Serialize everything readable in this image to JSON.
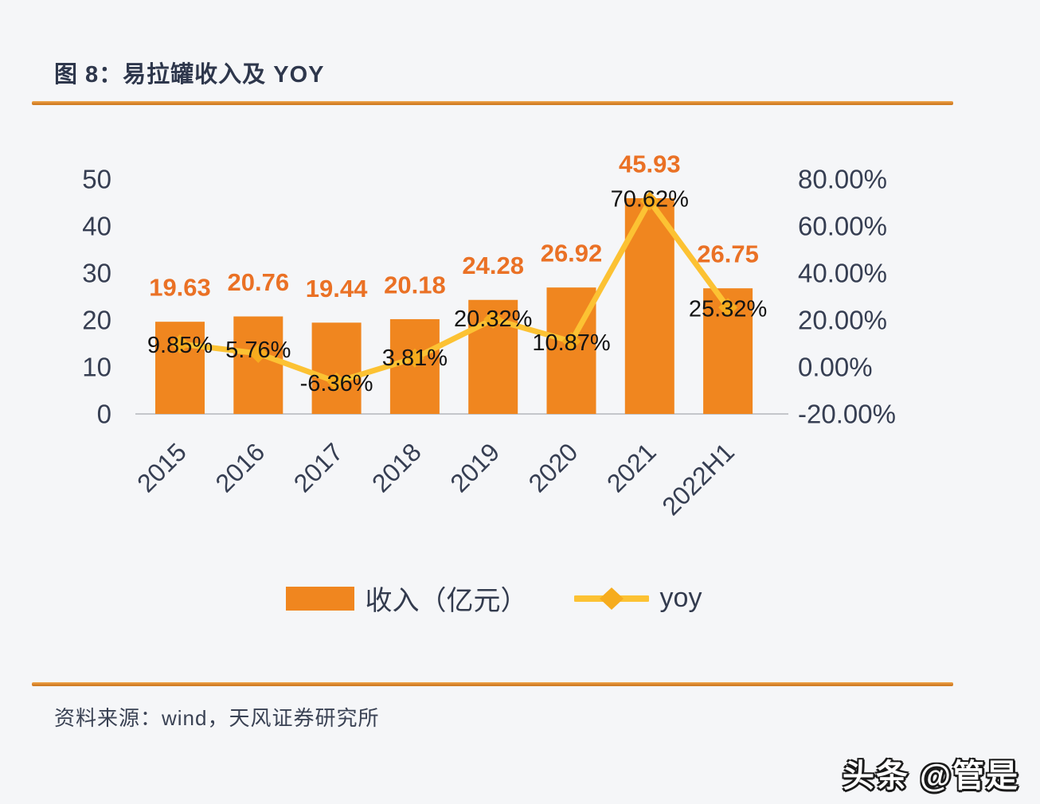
{
  "figure": {
    "title": "图 8：易拉罐收入及 YOY",
    "source": "资料来源：wind，天风证券研究所"
  },
  "watermark": "头条 @管是",
  "legend": {
    "bar_label": "收入（亿元）",
    "line_label": "yoy"
  },
  "colors": {
    "bar": "#f0861f",
    "bar_label": "#ea7125",
    "line": "#fcc233",
    "marker": "#f6ac1e",
    "tick_text": "#363e52",
    "line_label_text": "#141414",
    "axis_line": "#c4c6ca",
    "rule_orange": "#d9832a",
    "background": "#f5f6f8"
  },
  "chart_data": {
    "type": "bar",
    "subtype": "combo-bar-line",
    "title": "图 8：易拉罐收入及 YOY",
    "categories": [
      "2015",
      "2016",
      "2017",
      "2018",
      "2019",
      "2020",
      "2021",
      "2022H1"
    ],
    "series": [
      {
        "name": "收入（亿元）",
        "type": "bar",
        "axis": "left",
        "values": [
          19.63,
          20.76,
          19.44,
          20.18,
          24.28,
          26.92,
          45.93,
          26.75
        ],
        "labels": [
          "19.63",
          "20.76",
          "19.44",
          "20.18",
          "24.28",
          "26.92",
          "45.93",
          "26.75"
        ]
      },
      {
        "name": "yoy",
        "type": "line",
        "axis": "right",
        "values": [
          9.85,
          5.76,
          -6.36,
          3.81,
          20.32,
          10.87,
          70.62,
          25.32
        ],
        "labels": [
          "9.85%",
          "5.76%",
          "-6.36%",
          "3.81%",
          "20.32%",
          "10.87%",
          "70.62%",
          "25.32%"
        ]
      }
    ],
    "left_axis": {
      "ticks": [
        "0",
        "10",
        "20",
        "30",
        "40",
        "50"
      ],
      "range": [
        0,
        50
      ]
    },
    "right_axis": {
      "ticks": [
        "-20.00%",
        "0.00%",
        "20.00%",
        "40.00%",
        "60.00%",
        "80.00%"
      ],
      "range": [
        -20,
        80
      ]
    },
    "grid": false,
    "legend_position": "bottom"
  }
}
